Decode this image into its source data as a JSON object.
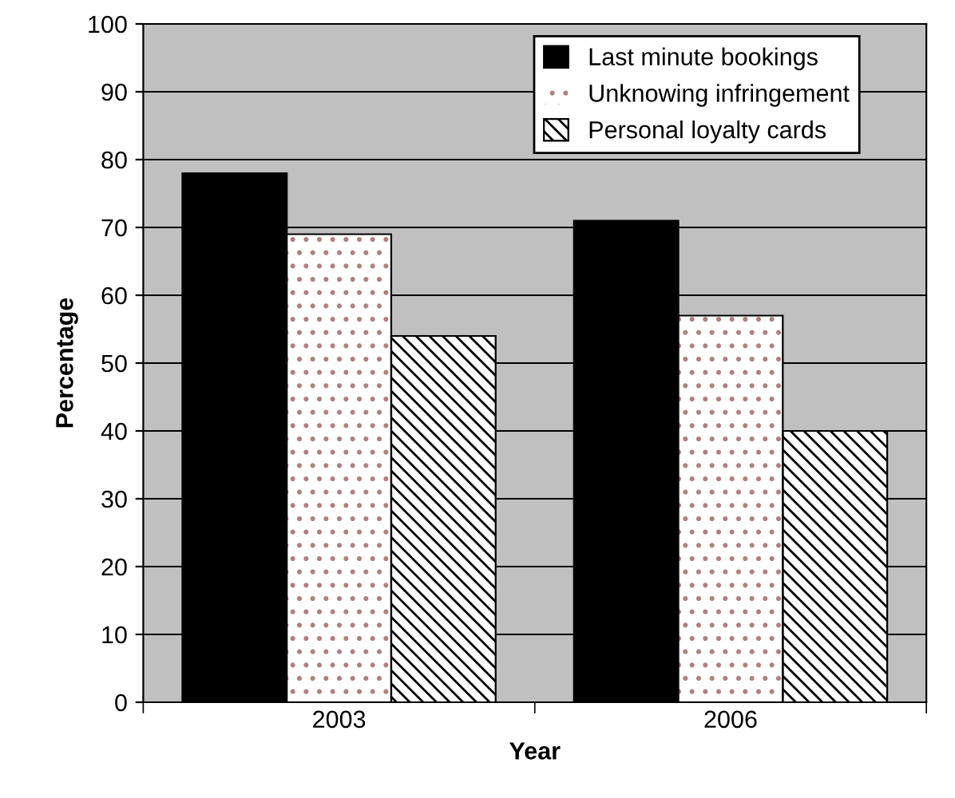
{
  "chart_data": {
    "type": "bar",
    "xlabel": "Year",
    "ylabel": "Percentage",
    "categories": [
      "2003",
      "2006"
    ],
    "series": [
      {
        "name": "Last minute bookings",
        "color": "#000000",
        "values": [
          78,
          71
        ]
      },
      {
        "name": "Unknowing infringement",
        "color": "#ffffff",
        "values": [
          69,
          57
        ]
      },
      {
        "name": "Personal loyalty cards",
        "color": "#000000",
        "values": [
          54,
          40
        ]
      }
    ],
    "ylim": [
      0,
      100
    ],
    "yticks": [
      0,
      10,
      20,
      30,
      40,
      50,
      60,
      70,
      80,
      90,
      100
    ],
    "grid": "y",
    "legend": "top right"
  }
}
